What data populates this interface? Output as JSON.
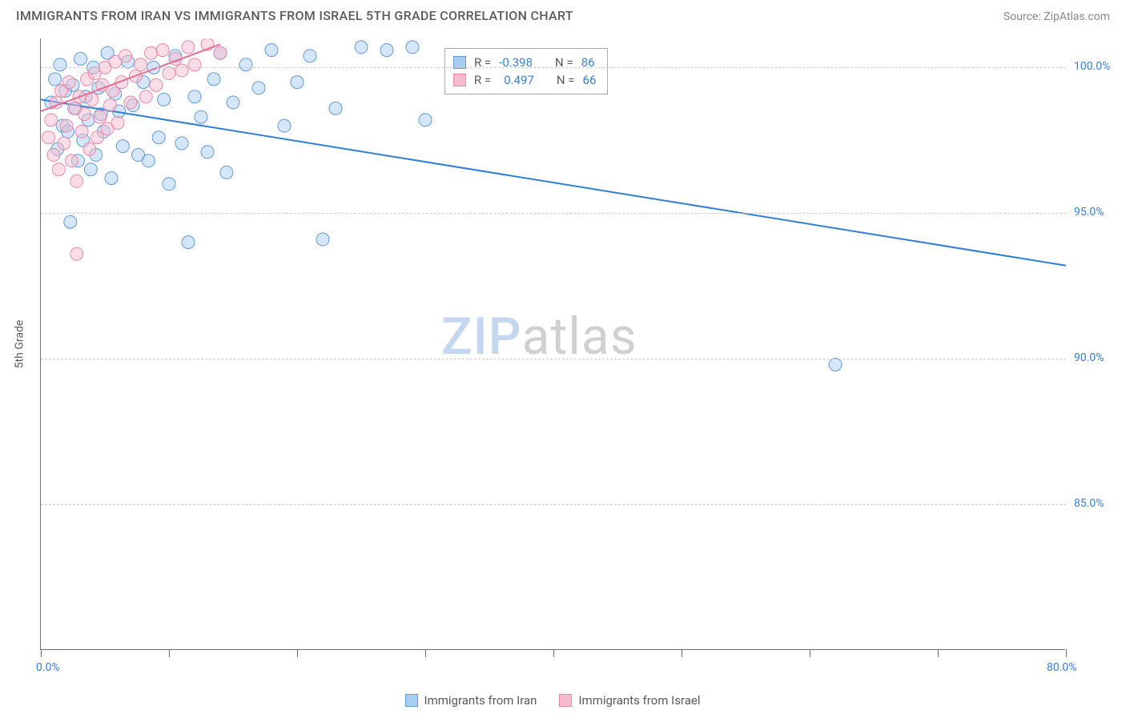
{
  "title": "IMMIGRANTS FROM IRAN VS IMMIGRANTS FROM ISRAEL 5TH GRADE CORRELATION CHART",
  "source": "Source: ZipAtlas.com",
  "y_axis_label": "5th Grade",
  "chart": {
    "type": "scatter",
    "xlim": [
      0,
      80
    ],
    "ylim": [
      80,
      101
    ],
    "x_ticks": [
      0,
      10,
      20,
      30,
      40,
      50,
      60,
      70,
      80
    ],
    "x_tick_labels": {
      "0": "0.0%",
      "80": "80.0%"
    },
    "y_ticks": [
      85,
      90,
      95,
      100
    ],
    "y_tick_labels": [
      "85.0%",
      "90.0%",
      "95.0%",
      "100.0%"
    ],
    "background_color": "#ffffff",
    "grid_color": "#cccccc",
    "axis_color": "#6f6f6f",
    "marker_radius": 8,
    "marker_opacity": 0.5,
    "line_width": 2
  },
  "series": [
    {
      "name": "Immigrants from Iran",
      "fill": "#a9cdf0",
      "stroke": "#5f9bd8",
      "line_color": "#2f7ed8",
      "R": "-0.398",
      "N": "86",
      "trend": {
        "x1": 0,
        "y1": 98.9,
        "x2": 80,
        "y2": 93.2
      },
      "points": [
        [
          0.8,
          98.8
        ],
        [
          1.1,
          99.6
        ],
        [
          1.3,
          97.2
        ],
        [
          1.5,
          100.1
        ],
        [
          1.7,
          98.0
        ],
        [
          1.9,
          99.2
        ],
        [
          2.1,
          97.8
        ],
        [
          2.3,
          94.7
        ],
        [
          2.5,
          99.4
        ],
        [
          2.7,
          98.6
        ],
        [
          2.9,
          96.8
        ],
        [
          3.1,
          100.3
        ],
        [
          3.3,
          97.5
        ],
        [
          3.5,
          99.0
        ],
        [
          3.7,
          98.2
        ],
        [
          3.9,
          96.5
        ],
        [
          4.1,
          100.0
        ],
        [
          4.3,
          97.0
        ],
        [
          4.5,
          99.3
        ],
        [
          4.7,
          98.4
        ],
        [
          4.9,
          97.8
        ],
        [
          5.2,
          100.5
        ],
        [
          5.5,
          96.2
        ],
        [
          5.8,
          99.1
        ],
        [
          6.1,
          98.5
        ],
        [
          6.4,
          97.3
        ],
        [
          6.8,
          100.2
        ],
        [
          7.2,
          98.7
        ],
        [
          7.6,
          97.0
        ],
        [
          8.0,
          99.5
        ],
        [
          8.4,
          96.8
        ],
        [
          8.8,
          100.0
        ],
        [
          9.2,
          97.6
        ],
        [
          9.6,
          98.9
        ],
        [
          10.0,
          96.0
        ],
        [
          10.5,
          100.4
        ],
        [
          11.0,
          97.4
        ],
        [
          11.5,
          94.0
        ],
        [
          12.0,
          99.0
        ],
        [
          12.5,
          98.3
        ],
        [
          13.0,
          97.1
        ],
        [
          13.5,
          99.6
        ],
        [
          14.0,
          100.5
        ],
        [
          14.5,
          96.4
        ],
        [
          15.0,
          98.8
        ],
        [
          16.0,
          100.1
        ],
        [
          17.0,
          99.3
        ],
        [
          18.0,
          100.6
        ],
        [
          19.0,
          98.0
        ],
        [
          20.0,
          99.5
        ],
        [
          21.0,
          100.4
        ],
        [
          22.0,
          94.1
        ],
        [
          23.0,
          98.6
        ],
        [
          25.0,
          100.7
        ],
        [
          27.0,
          100.6
        ],
        [
          29.0,
          100.7
        ],
        [
          30.0,
          98.2
        ],
        [
          62.0,
          89.8
        ]
      ]
    },
    {
      "name": "Immigrants from Israel",
      "fill": "#f5bccd",
      "stroke": "#e88ba8",
      "line_color": "#e76f94",
      "R": "0.497",
      "N": "66",
      "trend": {
        "x1": 0,
        "y1": 98.5,
        "x2": 14,
        "y2": 100.8
      },
      "points": [
        [
          0.6,
          97.6
        ],
        [
          0.8,
          98.2
        ],
        [
          1.0,
          97.0
        ],
        [
          1.2,
          98.8
        ],
        [
          1.4,
          96.5
        ],
        [
          1.6,
          99.2
        ],
        [
          1.8,
          97.4
        ],
        [
          2.0,
          98.0
        ],
        [
          2.2,
          99.5
        ],
        [
          2.4,
          96.8
        ],
        [
          2.6,
          98.6
        ],
        [
          2.8,
          96.1
        ],
        [
          3.0,
          99.0
        ],
        [
          3.2,
          97.8
        ],
        [
          3.4,
          98.4
        ],
        [
          3.6,
          99.6
        ],
        [
          3.8,
          97.2
        ],
        [
          4.0,
          98.9
        ],
        [
          4.2,
          99.8
        ],
        [
          4.4,
          97.6
        ],
        [
          4.6,
          98.3
        ],
        [
          4.8,
          99.4
        ],
        [
          5.0,
          100.0
        ],
        [
          5.2,
          97.9
        ],
        [
          5.4,
          98.7
        ],
        [
          5.6,
          99.2
        ],
        [
          5.8,
          100.2
        ],
        [
          6.0,
          98.1
        ],
        [
          6.3,
          99.5
        ],
        [
          6.6,
          100.4
        ],
        [
          7.0,
          98.8
        ],
        [
          7.4,
          99.7
        ],
        [
          7.8,
          100.1
        ],
        [
          8.2,
          99.0
        ],
        [
          8.6,
          100.5
        ],
        [
          9.0,
          99.4
        ],
        [
          9.5,
          100.6
        ],
        [
          10.0,
          99.8
        ],
        [
          10.5,
          100.3
        ],
        [
          11.0,
          99.9
        ],
        [
          11.5,
          100.7
        ],
        [
          12.0,
          100.1
        ],
        [
          13.0,
          100.8
        ],
        [
          14.0,
          100.5
        ],
        [
          2.8,
          93.6
        ]
      ]
    }
  ],
  "legend": {
    "iran": "Immigrants from Iran",
    "israel": "Immigrants from Israel"
  },
  "stats_labels": {
    "R": "R =",
    "N": "N ="
  },
  "watermark": {
    "zip": "ZIP",
    "atlas": "atlas"
  }
}
